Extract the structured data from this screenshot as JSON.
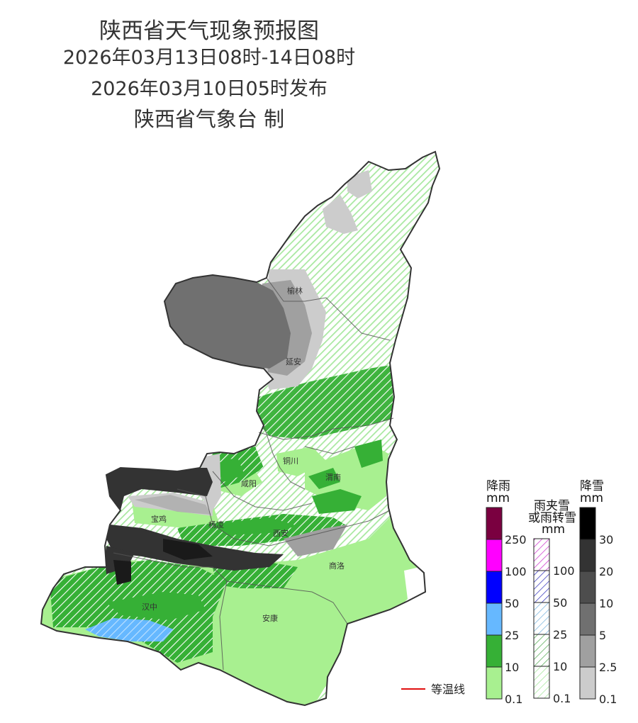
{
  "title": {
    "main": "陕西省天气现象预报图",
    "period": "2026年03月13日08时-14日08时",
    "published": "2026年03月10日05时发布",
    "issuer": "陕西省气象台 制"
  },
  "cities": [
    {
      "id": "yulin",
      "name": "榆林"
    },
    {
      "id": "yanan",
      "name": "延安"
    },
    {
      "id": "tongchuan",
      "name": "铜川"
    },
    {
      "id": "weinan",
      "name": "渭南"
    },
    {
      "id": "xianyang",
      "name": "咸阳"
    },
    {
      "id": "baoji",
      "name": "宝鸡"
    },
    {
      "id": "yangling",
      "name": "杨凌"
    },
    {
      "id": "xian",
      "name": "西安"
    },
    {
      "id": "shangluo",
      "name": "商洛"
    },
    {
      "id": "hanzhong",
      "name": "汉中"
    },
    {
      "id": "ankang",
      "name": "安康"
    }
  ],
  "isotherm_legend": {
    "label": "等温线",
    "color": "#e01010"
  },
  "legends": {
    "rain": {
      "title_line1": "降雨",
      "title_line2": "mm",
      "ticks": [
        "250",
        "100",
        "50",
        "25",
        "10",
        "0.1"
      ],
      "colors": [
        "#7a0040",
        "#ff00ff",
        "#0000ff",
        "#66b8ff",
        "#36b036",
        "#a8f090"
      ]
    },
    "sleet": {
      "title_line1": "雨夹雪",
      "title_line2": "或雨转雪",
      "title_line3": "mm",
      "ticks": [
        "100",
        "50",
        "25",
        "10",
        "0.1"
      ],
      "colors": [
        "#d040d0",
        "#4040c0",
        "#80b8e0",
        "#60b060",
        "#a8e8a0"
      ]
    },
    "snow": {
      "title_line1": "降雪",
      "title_line2": "mm",
      "ticks": [
        "30",
        "20",
        "10",
        "5",
        "2.5",
        "0.1"
      ],
      "colors": [
        "#000000",
        "#333333",
        "#4d4d4d",
        "#707070",
        "#a0a0a0",
        "#cccccc"
      ]
    }
  }
}
